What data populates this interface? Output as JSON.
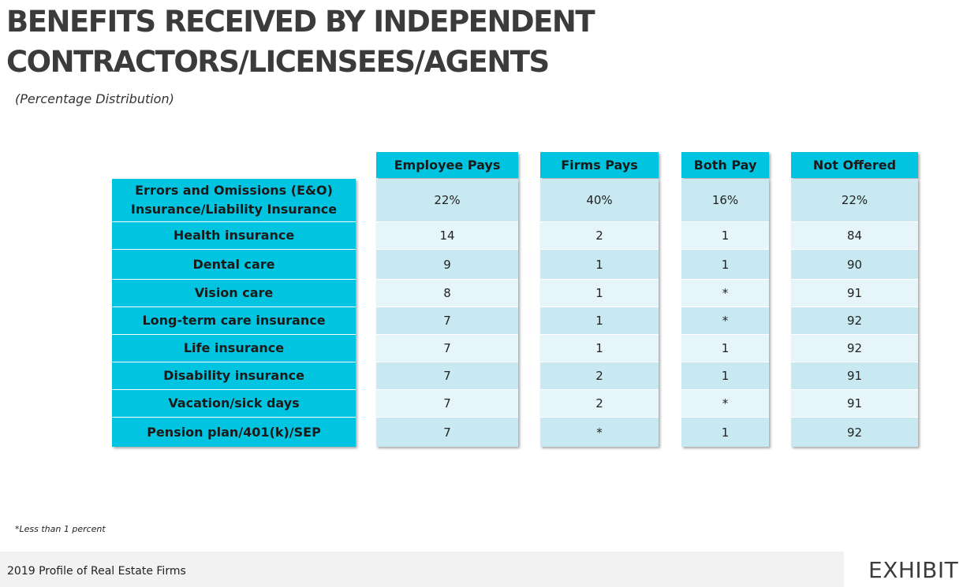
{
  "title_line1": "BENEFITS RECEIVED BY INDEPENDENT",
  "title_line2": "CONTRACTORS/LICENSEES/AGENTS",
  "subtitle": "(Percentage Distribution)",
  "columns": [
    "Employee Pays",
    "Firms Pays",
    "Both Pay",
    "Not Offered"
  ],
  "rows": [
    {
      "label_line1": "Errors and Omissions (E&O)",
      "label_line2": "Insurance/Liability Insurance",
      "values": [
        "22%",
        "40%",
        "16%",
        "22%"
      ]
    },
    {
      "label_line1": "Health insurance",
      "label_line2": "",
      "values": [
        "14",
        "2",
        "1",
        "84"
      ]
    },
    {
      "label_line1": "Dental care",
      "label_line2": "",
      "values": [
        "9",
        "1",
        "1",
        "90"
      ]
    },
    {
      "label_line1": "Vision care",
      "label_line2": "",
      "values": [
        "8",
        "1",
        "*",
        "91"
      ]
    },
    {
      "label_line1": "Long-term care insurance",
      "label_line2": "",
      "values": [
        "7",
        "1",
        "*",
        "92"
      ]
    },
    {
      "label_line1": "Life insurance",
      "label_line2": "",
      "values": [
        "7",
        "1",
        "1",
        "92"
      ]
    },
    {
      "label_line1": "Disability insurance",
      "label_line2": "",
      "values": [
        "7",
        "2",
        "1",
        "91"
      ]
    },
    {
      "label_line1": "Vacation/sick days",
      "label_line2": "",
      "values": [
        "7",
        "2",
        "*",
        "91"
      ]
    },
    {
      "label_line1": "Pension plan/401(k)/SEP",
      "label_line2": "",
      "values": [
        "7",
        "*",
        "1",
        "92"
      ]
    }
  ],
  "footnote": "*Less than 1 percent",
  "footer_source": "2019 Profile of Real Estate Firms",
  "exhibit_label": "EXHIBIT",
  "colors": {
    "header_cyan": "#00c4e0",
    "row_light": "#e6f5f9",
    "row_mid": "#c8e9f1",
    "title_gray": "#3b3b3b"
  }
}
